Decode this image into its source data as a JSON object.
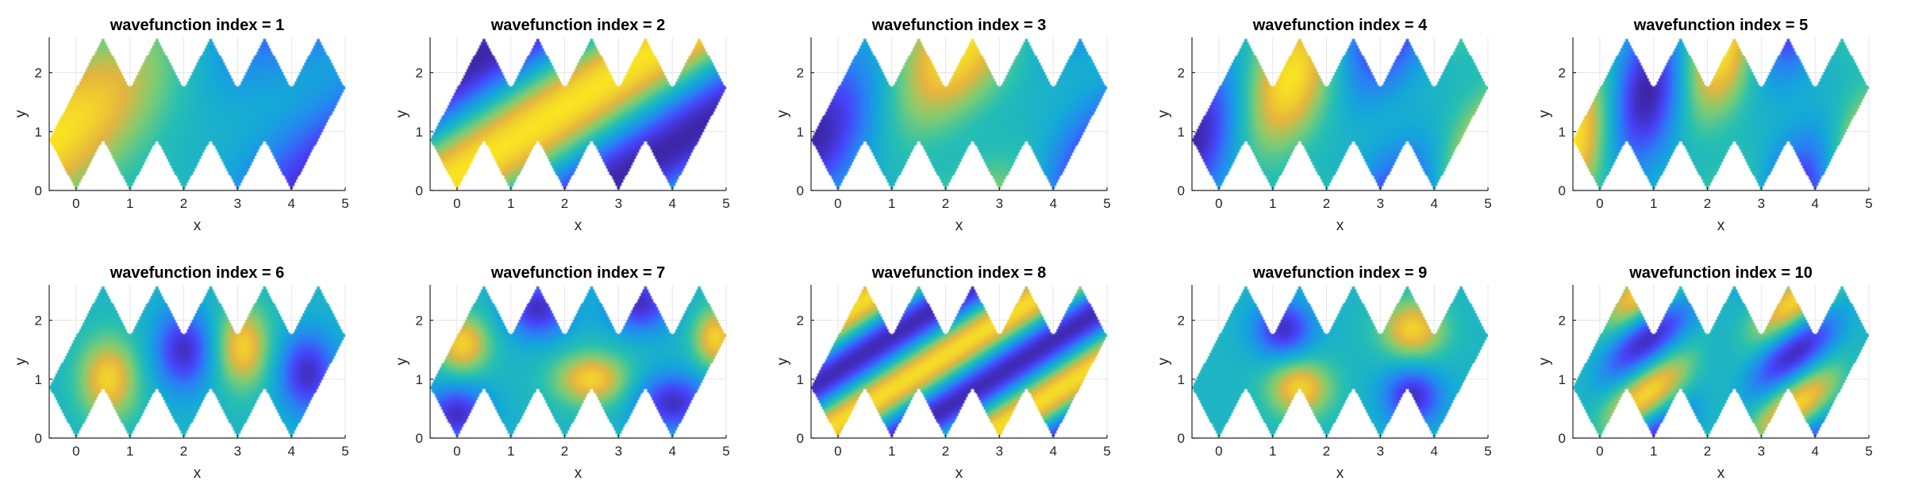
{
  "chart_data": {
    "type": "heatmap",
    "xlim": [
      -0.5,
      5
    ],
    "ylim": [
      0,
      2.6
    ],
    "xticks": [
      0,
      1,
      2,
      3,
      4,
      5
    ],
    "yticks": [
      0,
      1,
      2
    ],
    "grid": true,
    "colormap": "parula",
    "colormap_stops": [
      "#3e26a8",
      "#4743f8",
      "#2a7ff5",
      "#14a8d9",
      "#28c0b0",
      "#7fcc73",
      "#e6b53e",
      "#f9e322"
    ],
    "domain": {
      "description": "sawtooth strip",
      "bottom_vertices": [
        [
          -0.5,
          0.866
        ],
        [
          0,
          0
        ],
        [
          0.5,
          0.866
        ],
        [
          1,
          0
        ],
        [
          1.5,
          0.866
        ],
        [
          2,
          0
        ],
        [
          2.5,
          0.866
        ],
        [
          3,
          0
        ],
        [
          3.5,
          0.866
        ],
        [
          4,
          0
        ],
        [
          4.5,
          0.866
        ],
        [
          5,
          1.732
        ]
      ],
      "top_vertices": [
        [
          5,
          1.732
        ],
        [
          4.5,
          2.598
        ],
        [
          4,
          1.732
        ],
        [
          3.5,
          2.598
        ],
        [
          3,
          1.732
        ],
        [
          2.5,
          2.598
        ],
        [
          2,
          1.732
        ],
        [
          1.5,
          2.598
        ],
        [
          1,
          1.732
        ],
        [
          0.5,
          2.598
        ],
        [
          0,
          1.732
        ],
        [
          -0.5,
          0.866
        ]
      ]
    },
    "panels": [
      {
        "title": "wavefunction index = 1",
        "xlabel": "x",
        "ylabel": "y"
      },
      {
        "title": "wavefunction index = 2",
        "xlabel": "x",
        "ylabel": "y"
      },
      {
        "title": "wavefunction index = 3",
        "xlabel": "x",
        "ylabel": "y"
      },
      {
        "title": "wavefunction index = 4",
        "xlabel": "x",
        "ylabel": "y"
      },
      {
        "title": "wavefunction index = 5",
        "xlabel": "x",
        "ylabel": "y"
      },
      {
        "title": "wavefunction index = 6",
        "xlabel": "x",
        "ylabel": "y"
      },
      {
        "title": "wavefunction index = 7",
        "xlabel": "x",
        "ylabel": "y"
      },
      {
        "title": "wavefunction index = 8",
        "xlabel": "x",
        "ylabel": "y"
      },
      {
        "title": "wavefunction index = 9",
        "xlabel": "x",
        "ylabel": "y"
      },
      {
        "title": "wavefunction index = 10",
        "xlabel": "x",
        "ylabel": "y"
      }
    ]
  }
}
